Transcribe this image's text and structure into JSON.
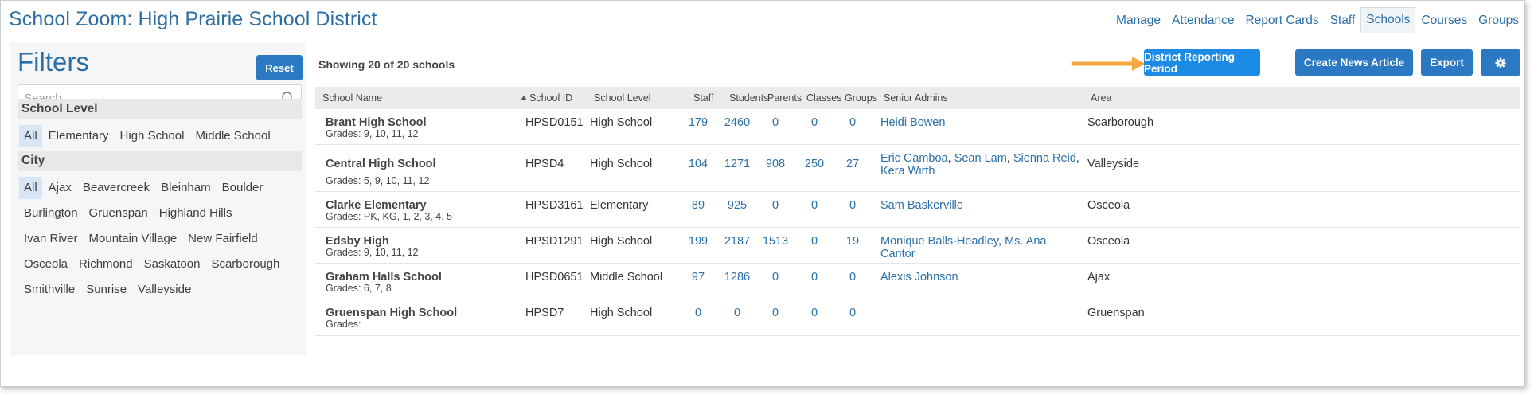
{
  "app": {
    "title": "School Zoom: High Prairie School District"
  },
  "nav": [
    {
      "label": "Manage"
    },
    {
      "label": "Attendance"
    },
    {
      "label": "Report Cards"
    },
    {
      "label": "Staff"
    },
    {
      "label": "Schools",
      "active": true
    },
    {
      "label": "Courses"
    },
    {
      "label": "Groups"
    }
  ],
  "filters": {
    "title": "Filters",
    "reset_label": "Reset",
    "search_placeholder": "Search",
    "school_level": {
      "label": "School Level",
      "options": [
        "All",
        "Elementary",
        "High School",
        "Middle School"
      ],
      "selected": "All"
    },
    "city": {
      "label": "City",
      "options": [
        "All",
        "Ajax",
        "Beavercreek",
        "Bleinham",
        "Boulder",
        "Burlington",
        "Gruenspan",
        "Highland Hills",
        "Ivan River",
        "Mountain Village",
        "New Fairfield",
        "Osceola",
        "Richmond",
        "Saskatoon",
        "Scarborough",
        "Smithville",
        "Sunrise",
        "Valleyside"
      ],
      "selected": "All"
    }
  },
  "main": {
    "showing_text": "Showing 20 of 20 schools",
    "buttons": {
      "district_reporting": "District Reporting Period",
      "create_news": "Create News Article",
      "export": "Export"
    },
    "columns": {
      "school_name": "School Name",
      "school_id": "School ID",
      "school_level": "School Level",
      "staff": "Staff",
      "students": "Students",
      "parents": "Parents",
      "classes": "Classes",
      "groups": "Groups",
      "senior_admins": "Senior Admins",
      "area": "Area"
    },
    "rows": [
      {
        "name": "Brant High School",
        "grades": "Grades: 9, 10, 11, 12",
        "id": "HPSD0151",
        "level": "High School",
        "staff": "179",
        "students": "2460",
        "parents": "0",
        "classes": "0",
        "groups": "0",
        "admins": [
          "Heidi Bowen"
        ],
        "area": "Scarborough"
      },
      {
        "name": "Central High School",
        "grades": "Grades: 5, 9, 10, 11, 12",
        "id": "HPSD4",
        "level": "High School",
        "staff": "104",
        "students": "1271",
        "parents": "908",
        "classes": "250",
        "groups": "27",
        "admins": [
          "Eric Gamboa",
          "Sean Lam",
          "Sienna Reid",
          "Kera Wirth"
        ],
        "area": "Valleyside"
      },
      {
        "name": "Clarke Elementary",
        "grades": "Grades: PK, KG, 1, 2, 3, 4, 5",
        "id": "HPSD3161",
        "level": "Elementary",
        "staff": "89",
        "students": "925",
        "parents": "0",
        "classes": "0",
        "groups": "0",
        "admins": [
          "Sam Baskerville"
        ],
        "area": "Osceola"
      },
      {
        "name": "Edsby High",
        "grades": "Grades: 9, 10, 11, 12",
        "id": "HPSD1291",
        "level": "High School",
        "staff": "199",
        "students": "2187",
        "parents": "1513",
        "classes": "0",
        "groups": "19",
        "admins": [
          "Monique Balls-Headley",
          "Ms. Ana Cantor"
        ],
        "area": "Osceola"
      },
      {
        "name": "Graham Halls School",
        "grades": "Grades: 6, 7, 8",
        "id": "HPSD0651",
        "level": "Middle School",
        "staff": "97",
        "students": "1286",
        "parents": "0",
        "classes": "0",
        "groups": "0",
        "admins": [
          "Alexis Johnson"
        ],
        "area": "Ajax"
      },
      {
        "name": "Gruenspan High School",
        "grades": "Grades:",
        "id": "HPSD7",
        "level": "High School",
        "staff": "0",
        "students": "0",
        "parents": "0",
        "classes": "0",
        "groups": "0",
        "admins": [],
        "area": "Gruenspan"
      }
    ]
  },
  "colors": {
    "brand": "#2c6ea3",
    "button": "#2b79c2",
    "highlight_button": "#1c8be6",
    "callout_arrow": "#f5a742",
    "link": "#2b6fa8"
  }
}
